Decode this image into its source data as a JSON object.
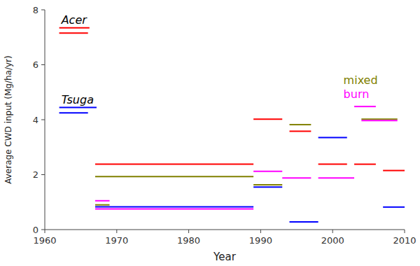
{
  "chart_data": {
    "type": "segments",
    "xlabel": "Year",
    "ylabel": "Average CWD input (Mg/ha/yr)",
    "xlim": [
      1960,
      2010
    ],
    "ylim": [
      0,
      8
    ],
    "xticks": [
      1960,
      1970,
      1980,
      1990,
      2000,
      2010
    ],
    "yticks": [
      0,
      2,
      4,
      6,
      8
    ],
    "grid": false,
    "segments": [
      {
        "x1": 1962,
        "x2": 1966,
        "y": 7.15,
        "color": "#ff0000"
      },
      {
        "x1": 1962,
        "x2": 1966,
        "y": 4.25,
        "color": "#0000ff"
      },
      {
        "x1": 1967,
        "x2": 1969,
        "y": 1.05,
        "color": "#ff00ff"
      },
      {
        "x1": 1967,
        "x2": 1969,
        "y": 0.9,
        "color": "#808000"
      },
      {
        "x1": 1967,
        "x2": 1989,
        "y": 0.83,
        "color": "#0000ff"
      },
      {
        "x1": 1967,
        "x2": 1989,
        "y": 0.75,
        "color": "#ff00ff"
      },
      {
        "x1": 1967,
        "x2": 1989,
        "y": 2.38,
        "color": "#ff0000"
      },
      {
        "x1": 1967,
        "x2": 1989,
        "y": 1.93,
        "color": "#808000"
      },
      {
        "x1": 1989,
        "x2": 1993,
        "y": 4.02,
        "color": "#ff0000"
      },
      {
        "x1": 1989,
        "x2": 1993,
        "y": 2.12,
        "color": "#ff00ff"
      },
      {
        "x1": 1989,
        "x2": 1993,
        "y": 1.63,
        "color": "#808000"
      },
      {
        "x1": 1989,
        "x2": 1993,
        "y": 1.55,
        "color": "#0000ff"
      },
      {
        "x1": 1994,
        "x2": 1997,
        "y": 3.82,
        "color": "#808000"
      },
      {
        "x1": 1994,
        "x2": 1997,
        "y": 3.58,
        "color": "#ff0000"
      },
      {
        "x1": 1993,
        "x2": 1997,
        "y": 1.88,
        "color": "#ff00ff"
      },
      {
        "x1": 1994,
        "x2": 1998,
        "y": 0.28,
        "color": "#0000ff"
      },
      {
        "x1": 1998,
        "x2": 2002,
        "y": 3.35,
        "color": "#0000ff"
      },
      {
        "x1": 1998,
        "x2": 2002,
        "y": 2.38,
        "color": "#ff0000"
      },
      {
        "x1": 1998,
        "x2": 2003,
        "y": 1.88,
        "color": "#ff00ff"
      },
      {
        "x1": 2003,
        "x2": 2006,
        "y": 4.48,
        "color": "#ff00ff"
      },
      {
        "x1": 2003,
        "x2": 2006,
        "y": 2.38,
        "color": "#ff0000"
      },
      {
        "x1": 2004,
        "x2": 2009,
        "y": 4.02,
        "color": "#808000"
      },
      {
        "x1": 2004,
        "x2": 2009,
        "y": 3.97,
        "color": "#ff00ff"
      },
      {
        "x1": 2007,
        "x2": 2010,
        "y": 2.15,
        "color": "#ff0000"
      },
      {
        "x1": 2007,
        "x2": 2010,
        "y": 0.82,
        "color": "#0000ff"
      }
    ],
    "annotations": [
      {
        "text": "Acer",
        "x": 1962.3,
        "y": 7.42,
        "color": "black",
        "style": "italic",
        "underline_color": "#ff0000"
      },
      {
        "text": "Tsuga",
        "x": 1962.3,
        "y": 4.52,
        "color": "black",
        "style": "italic",
        "underline_color": "#0000ff"
      },
      {
        "text": "mixed",
        "x": 2001.5,
        "y": 5.22,
        "color": "#808000",
        "style": "normal"
      },
      {
        "text": "burn",
        "x": 2001.5,
        "y": 4.72,
        "color": "#ff00ff",
        "style": "normal"
      }
    ]
  }
}
